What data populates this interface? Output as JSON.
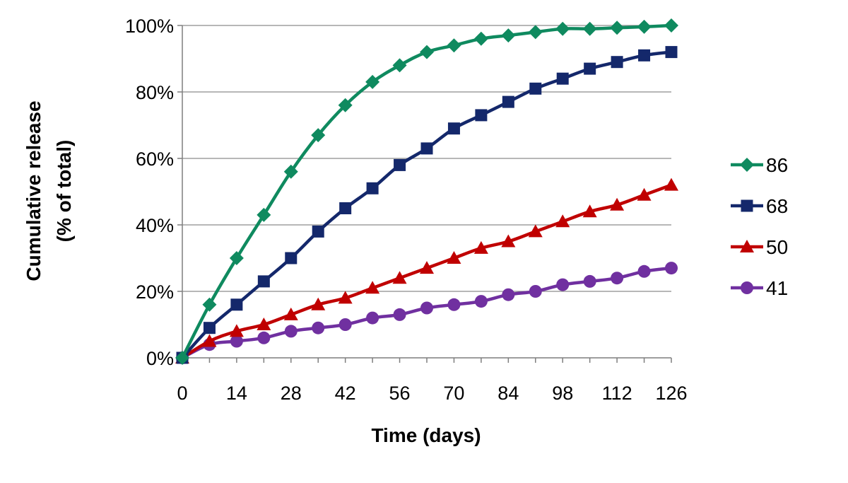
{
  "chart_data": {
    "type": "line",
    "title": "",
    "xlabel": "Time (days)",
    "ylabel_line1": "Cumulative release",
    "ylabel_line2": "(% of total)",
    "xlim": [
      0,
      126
    ],
    "ylim": [
      0,
      100
    ],
    "x_ticks": [
      0,
      14,
      28,
      42,
      56,
      70,
      84,
      98,
      112,
      126
    ],
    "y_ticks": [
      0,
      20,
      40,
      60,
      80,
      100
    ],
    "y_tick_labels": [
      "0%",
      "20%",
      "40%",
      "60%",
      "80%",
      "100%"
    ],
    "grid": "horizontal",
    "legend_position": "right",
    "x": [
      0,
      7,
      14,
      21,
      28,
      35,
      42,
      49,
      56,
      63,
      70,
      77,
      84,
      91,
      98,
      105,
      112,
      119,
      126
    ],
    "series": [
      {
        "name": "86",
        "color": "#0f8a5f",
        "marker": "diamond",
        "values": [
          0,
          16,
          30,
          43,
          56,
          67,
          76,
          83,
          88,
          92,
          94,
          96,
          97,
          98,
          99,
          99,
          99.3,
          99.6,
          100
        ]
      },
      {
        "name": "68",
        "color": "#14286b",
        "marker": "square",
        "values": [
          0,
          9,
          16,
          23,
          30,
          38,
          45,
          51,
          58,
          63,
          69,
          73,
          77,
          81,
          84,
          87,
          89,
          91,
          92
        ]
      },
      {
        "name": "50",
        "color": "#c00000",
        "marker": "triangle",
        "values": [
          0,
          5,
          8,
          10,
          13,
          16,
          18,
          21,
          24,
          27,
          30,
          33,
          35,
          38,
          41,
          44,
          46,
          49,
          52
        ]
      },
      {
        "name": "41",
        "color": "#7030a0",
        "marker": "circle",
        "values": [
          0,
          4,
          5,
          6,
          8,
          9,
          10,
          12,
          13,
          15,
          16,
          17,
          19,
          20,
          22,
          23,
          24,
          26,
          27
        ]
      }
    ]
  }
}
